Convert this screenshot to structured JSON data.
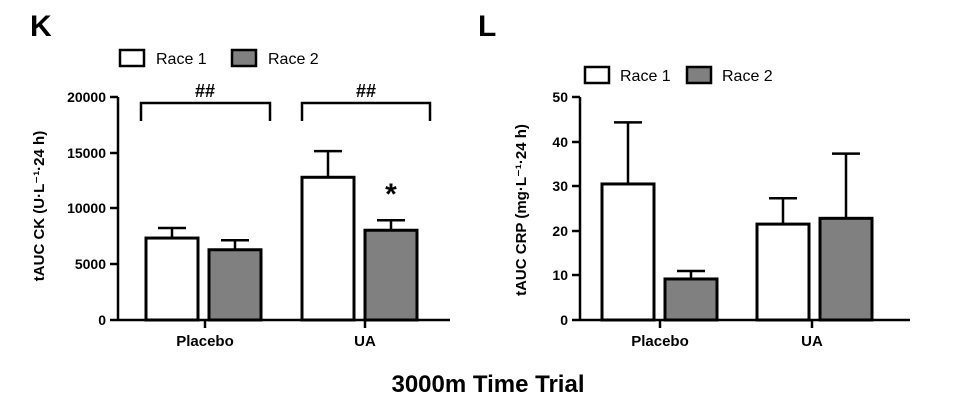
{
  "figure_title": "3000m Time Trial",
  "colors": {
    "race1": "#ffffff",
    "race2": "#808080",
    "stroke": "#000000"
  },
  "chart_data": [
    {
      "type": "bar",
      "panel": "K",
      "title": "",
      "xlabel": "",
      "ylabel": "tAUC CK (U·L⁻¹·24 h)",
      "categories": [
        "Placebo",
        "UA"
      ],
      "series": [
        {
          "name": "Race 1",
          "values": [
            7350,
            12800
          ],
          "errors": [
            900,
            2350
          ]
        },
        {
          "name": "Race 2",
          "values": [
            6300,
            8050
          ],
          "errors": [
            850,
            900
          ]
        }
      ],
      "ylim": [
        0,
        20000
      ],
      "yticks": [
        0,
        5000,
        10000,
        15000,
        20000
      ],
      "ytick_labels": [
        "0",
        "5000",
        "10000",
        "15000",
        "20000"
      ],
      "grid": false,
      "legend_position": "top-left",
      "annotations": [
        {
          "type": "bracket",
          "category": "Placebo",
          "label": "##"
        },
        {
          "type": "bracket",
          "category": "UA",
          "label": "##"
        },
        {
          "type": "marker",
          "category": "UA",
          "series": "Race 2",
          "label": "*"
        }
      ]
    },
    {
      "type": "bar",
      "panel": "L",
      "title": "",
      "xlabel": "",
      "ylabel": "tAUC CRP (mg·L⁻¹·24 h)",
      "categories": [
        "Placebo",
        "UA"
      ],
      "series": [
        {
          "name": "Race 1",
          "values": [
            30.5,
            21.5
          ],
          "errors": [
            13.8,
            5.8
          ]
        },
        {
          "name": "Race 2",
          "values": [
            9.2,
            22.8
          ],
          "errors": [
            1.8,
            14.5
          ]
        }
      ],
      "ylim": [
        0,
        50
      ],
      "yticks": [
        0,
        10,
        20,
        30,
        40,
        50
      ],
      "ytick_labels": [
        "0",
        "10",
        "20",
        "30",
        "40",
        "50"
      ],
      "grid": false,
      "legend_position": "top-left",
      "annotations": []
    }
  ]
}
